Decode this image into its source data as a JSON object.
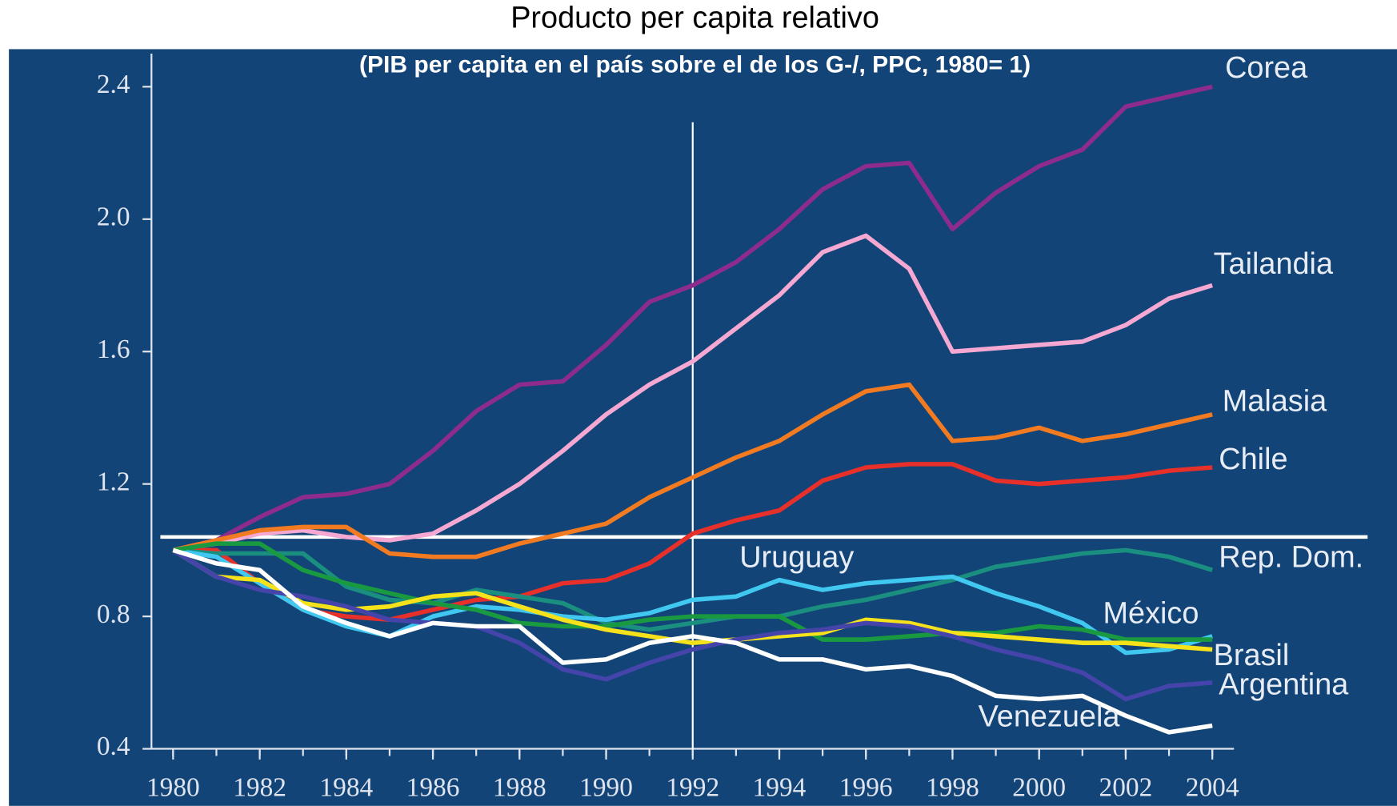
{
  "chart_data": {
    "type": "line",
    "title": "Producto per capita relativo",
    "subtitle": "(PIB per capita en el país sobre el de los G-/, PPC, 1980= 1)",
    "x": [
      1980,
      1981,
      1982,
      1983,
      1984,
      1985,
      1986,
      1987,
      1988,
      1989,
      1990,
      1991,
      1992,
      1993,
      1994,
      1995,
      1996,
      1997,
      1998,
      1999,
      2000,
      2001,
      2002,
      2003,
      2004
    ],
    "xlim": [
      1979.5,
      2004.5
    ],
    "xticks": [
      1980,
      1982,
      1984,
      1986,
      1988,
      1990,
      1992,
      1994,
      1996,
      1998,
      2000,
      2002,
      2004
    ],
    "ylim": [
      0.4,
      2.5
    ],
    "yticks": [
      0.4,
      0.8,
      1.2,
      1.6,
      {
        "value": 2,
        "label": "2.0"
      },
      2.4
    ],
    "reference_lines": {
      "horizontal": 1.04,
      "vertical": 1992
    },
    "series": [
      {
        "name": "Corea",
        "color": "#8e2c8e",
        "values": [
          1.0,
          1.03,
          1.1,
          1.16,
          1.17,
          1.2,
          1.3,
          1.42,
          1.5,
          1.51,
          1.62,
          1.75,
          1.8,
          1.87,
          1.97,
          2.09,
          2.16,
          2.17,
          1.97,
          2.08,
          2.16,
          2.21,
          2.34,
          2.37,
          2.4
        ]
      },
      {
        "name": "Tailandia",
        "color": "#f4a8d2",
        "values": [
          1.0,
          1.02,
          1.05,
          1.06,
          1.04,
          1.03,
          1.05,
          1.12,
          1.2,
          1.3,
          1.41,
          1.5,
          1.57,
          1.67,
          1.77,
          1.9,
          1.95,
          1.85,
          1.6,
          1.61,
          1.62,
          1.63,
          1.68,
          1.76,
          1.8
        ]
      },
      {
        "name": "Malasia",
        "color": "#f27b22",
        "values": [
          1.0,
          1.03,
          1.06,
          1.07,
          1.07,
          0.99,
          0.98,
          0.98,
          1.02,
          1.05,
          1.08,
          1.16,
          1.22,
          1.28,
          1.33,
          1.41,
          1.48,
          1.5,
          1.33,
          1.34,
          1.37,
          1.33,
          1.35,
          1.38,
          1.41
        ]
      },
      {
        "name": "Chile",
        "color": "#e8302a",
        "values": [
          1.0,
          1.0,
          0.9,
          0.82,
          0.8,
          0.79,
          0.82,
          0.85,
          0.86,
          0.9,
          0.91,
          0.96,
          1.05,
          1.09,
          1.12,
          1.21,
          1.25,
          1.26,
          1.26,
          1.21,
          1.2,
          1.21,
          1.22,
          1.24,
          1.25
        ]
      },
      {
        "name": "Rep. Dom.",
        "color": "#1a8f80",
        "values": [
          1.0,
          0.99,
          0.99,
          0.99,
          0.89,
          0.85,
          0.84,
          0.88,
          0.86,
          0.84,
          0.78,
          0.76,
          0.78,
          0.8,
          0.8,
          0.83,
          0.85,
          0.88,
          0.91,
          0.95,
          0.97,
          0.99,
          1.0,
          0.98,
          0.94
        ]
      },
      {
        "name": "Uruguay",
        "color": "#40c8f0",
        "values": [
          1.0,
          0.98,
          0.9,
          0.82,
          0.77,
          0.74,
          0.8,
          0.83,
          0.82,
          0.8,
          0.79,
          0.81,
          0.85,
          0.86,
          0.91,
          0.88,
          0.9,
          0.91,
          0.92,
          0.87,
          0.83,
          0.78,
          0.69,
          0.7,
          0.74
        ]
      },
      {
        "name": "México",
        "color": "#1a9a40",
        "values": [
          1.0,
          1.02,
          1.02,
          0.94,
          0.9,
          0.87,
          0.84,
          0.82,
          0.78,
          0.77,
          0.77,
          0.79,
          0.8,
          0.8,
          0.8,
          0.73,
          0.73,
          0.74,
          0.75,
          0.75,
          0.77,
          0.76,
          0.73,
          0.73,
          0.73
        ]
      },
      {
        "name": "Brasil",
        "color": "#f5e21a",
        "values": [
          1.0,
          0.92,
          0.91,
          0.84,
          0.82,
          0.83,
          0.86,
          0.87,
          0.83,
          0.79,
          0.76,
          0.74,
          0.72,
          0.73,
          0.74,
          0.75,
          0.79,
          0.78,
          0.75,
          0.74,
          0.73,
          0.72,
          0.72,
          0.71,
          0.7
        ]
      },
      {
        "name": "Argentina",
        "color": "#4444aa",
        "values": [
          1.0,
          0.92,
          0.88,
          0.86,
          0.83,
          0.79,
          0.78,
          0.77,
          0.72,
          0.64,
          0.61,
          0.66,
          0.7,
          0.73,
          0.75,
          0.76,
          0.78,
          0.77,
          0.74,
          0.7,
          0.67,
          0.63,
          0.55,
          0.59,
          0.6
        ]
      },
      {
        "name": "Venezuela",
        "color": "#ffffff",
        "values": [
          1.0,
          0.96,
          0.94,
          0.83,
          0.78,
          0.74,
          0.78,
          0.77,
          0.77,
          0.66,
          0.67,
          0.72,
          0.74,
          0.72,
          0.67,
          0.67,
          0.64,
          0.65,
          0.62,
          0.56,
          0.55,
          0.56,
          0.5,
          0.45,
          0.47
        ]
      }
    ]
  }
}
